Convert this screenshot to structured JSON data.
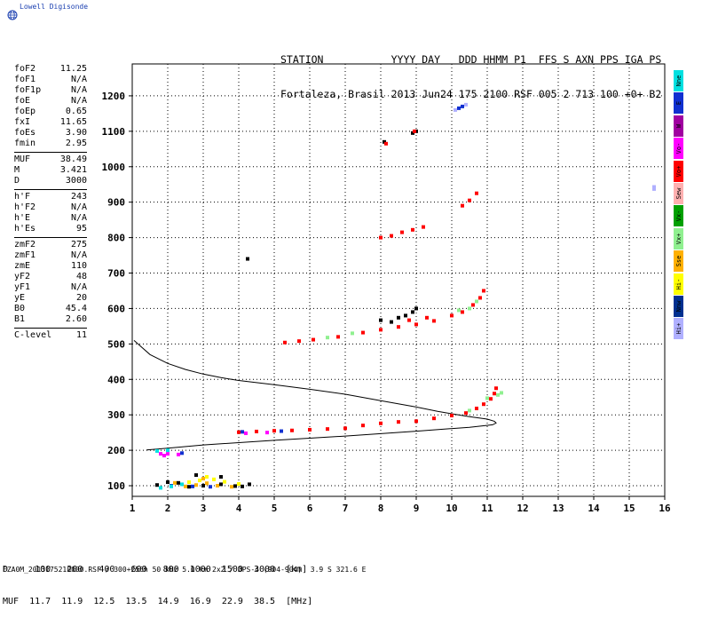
{
  "brand": {
    "name": "Lowell Digisonde"
  },
  "header": {
    "row1": "STATION           YYYY DAY   DDD HHMM P1  FFS S AXN PPS IGA PS",
    "row2": "Fortaleza, Brasil 2013 Jun24 175 2100 RSF 005 2 713 100 +0+ B2"
  },
  "params": [
    [
      {
        "k": "foF2",
        "v": "11.25"
      },
      {
        "k": "foF1",
        "v": "N/A"
      },
      {
        "k": "foF1p",
        "v": "N/A"
      },
      {
        "k": "foE",
        "v": "N/A"
      },
      {
        "k": "foEp",
        "v": "0.65"
      },
      {
        "k": "fxI",
        "v": "11.65"
      },
      {
        "k": "foEs",
        "v": "3.90"
      },
      {
        "k": "fmin",
        "v": "2.95"
      }
    ],
    [
      {
        "k": "MUF",
        "v": "38.49"
      },
      {
        "k": "M",
        "v": "3.421"
      },
      {
        "k": "D",
        "v": "3000"
      }
    ],
    [
      {
        "k": "h'F",
        "v": "243"
      },
      {
        "k": "h'F2",
        "v": "N/A"
      },
      {
        "k": "h'E",
        "v": "N/A"
      },
      {
        "k": "h'Es",
        "v": "95"
      }
    ],
    [
      {
        "k": "zmF2",
        "v": "275"
      },
      {
        "k": "zmF1",
        "v": "N/A"
      },
      {
        "k": "zmE",
        "v": "110"
      },
      {
        "k": "yF2",
        "v": "48"
      },
      {
        "k": "yF1",
        "v": "N/A"
      },
      {
        "k": "yE",
        "v": "20"
      },
      {
        "k": "B0",
        "v": "45.4"
      },
      {
        "k": "B1",
        "v": "2.60"
      }
    ],
    [
      {
        "k": "C-level",
        "v": "11"
      }
    ]
  ],
  "modes": [
    {
      "label": "Nne",
      "color": "#00e0e0"
    },
    {
      "label": "E",
      "color": "#1030d0"
    },
    {
      "label": "W",
      "color": "#a000a0"
    },
    {
      "label": "Vo-",
      "color": "#ff00ff"
    },
    {
      "label": "Vo+",
      "color": "#ff0000"
    },
    {
      "label": "Sew",
      "color": "#ffb0b0"
    },
    {
      "label": "Vx-",
      "color": "#00a000"
    },
    {
      "label": "Vx+",
      "color": "#90f090"
    },
    {
      "label": "Sse",
      "color": "#ffb000"
    },
    {
      "label": "Hi-",
      "color": "#ffff00"
    },
    {
      "label": "Nnw",
      "color": "#003090"
    },
    {
      "label": "Hi+",
      "color": "#b0b0ff"
    }
  ],
  "muf_table": {
    "row1": "D     100   200   400   600   800  1000  1500  3000  [km]",
    "row2": "MUF  11.7  11.9  12.5  13.5  14.9  16.9  22.9  38.5  [MHz]"
  },
  "footer": "FZA0M_2013175210000.RSF / 300+256h 50 kHz 5.0 km 2x2 / DPS-4 (904-904)  3.9 S 321.6 E",
  "chart_data": {
    "type": "scatter",
    "xlim": [
      1,
      16
    ],
    "ylim": [
      70,
      1290
    ],
    "x_ticks": [
      1,
      2,
      3,
      4,
      5,
      6,
      7,
      8,
      9,
      10,
      11,
      12,
      13,
      14,
      15,
      16
    ],
    "y_ticks": [
      100,
      200,
      300,
      400,
      500,
      600,
      700,
      800,
      900,
      1000,
      1100,
      1200
    ],
    "grid": "dotted",
    "series": [
      {
        "color": "#000000",
        "points": [
          [
            1.05,
            510
          ],
          [
            1.5,
            470
          ],
          [
            2,
            445
          ],
          [
            2.5,
            428
          ],
          [
            3,
            415
          ],
          [
            3.5,
            405
          ],
          [
            4,
            397
          ],
          [
            5,
            385
          ],
          [
            6,
            372
          ],
          [
            7,
            358
          ],
          [
            8,
            340
          ],
          [
            9,
            322
          ],
          [
            9.6,
            310
          ],
          [
            10,
            303
          ],
          [
            10.5,
            295
          ],
          [
            11,
            288
          ],
          [
            11.2,
            282
          ],
          [
            11.25,
            277
          ],
          [
            11.15,
            272
          ],
          [
            10.5,
            265
          ],
          [
            9,
            254
          ],
          [
            7,
            240
          ],
          [
            5,
            228
          ],
          [
            3,
            215
          ],
          [
            2,
            206
          ],
          [
            1.4,
            201
          ]
        ]
      },
      {
        "color": "#ff0000",
        "points": [
          [
            4,
            251
          ],
          [
            4.5,
            253
          ],
          [
            5,
            255
          ],
          [
            5.5,
            256
          ],
          [
            6,
            258
          ],
          [
            6.5,
            260
          ],
          [
            7,
            262
          ],
          [
            7.5,
            270
          ],
          [
            8,
            276
          ],
          [
            8.5,
            280
          ],
          [
            9,
            282
          ],
          [
            9.5,
            290
          ],
          [
            10,
            298
          ],
          [
            10.4,
            305
          ],
          [
            10.7,
            318
          ],
          [
            10.9,
            330
          ],
          [
            11.1,
            345
          ],
          [
            11.2,
            360
          ],
          [
            11.25,
            375
          ],
          [
            6.8,
            520
          ],
          [
            7.5,
            532
          ],
          [
            8,
            540
          ],
          [
            8.5,
            548
          ],
          [
            9,
            555
          ],
          [
            9.5,
            565
          ],
          [
            10,
            580
          ],
          [
            10.3,
            590
          ],
          [
            10.6,
            610
          ],
          [
            10.8,
            630
          ],
          [
            10.9,
            650
          ],
          [
            5.3,
            504
          ],
          [
            5.7,
            508
          ],
          [
            6.1,
            512
          ],
          [
            8.8,
            567
          ],
          [
            9.3,
            574
          ]
        ]
      },
      {
        "color": "#90f090",
        "points": [
          [
            11.3,
            356
          ],
          [
            11.4,
            362
          ],
          [
            11.0,
            347
          ],
          [
            10.5,
            312
          ],
          [
            10.2,
            595
          ],
          [
            10.5,
            600
          ],
          [
            10.7,
            620
          ],
          [
            6.5,
            518
          ],
          [
            7.2,
            530
          ]
        ]
      },
      {
        "color": "#ff00ff",
        "points": [
          [
            4.2,
            248
          ],
          [
            4.8,
            250
          ],
          [
            2.0,
            190
          ],
          [
            1.8,
            190
          ],
          [
            1.9,
            185
          ],
          [
            2.3,
            188
          ]
        ]
      },
      {
        "color": "#1030d0",
        "points": [
          [
            4.1,
            252
          ],
          [
            5.2,
            254
          ],
          [
            2.1,
            100
          ],
          [
            2.7,
            98
          ],
          [
            3.2,
            97
          ],
          [
            2.4,
            192
          ],
          [
            10.2,
            1165
          ],
          [
            10.3,
            1170
          ]
        ]
      },
      {
        "color": "#00e0e0",
        "points": [
          [
            1.8,
            94
          ],
          [
            2.1,
            98
          ],
          [
            2.4,
            104
          ],
          [
            1.7,
            198
          ],
          [
            2.0,
            200
          ]
        ]
      },
      {
        "color": "#ffb000",
        "points": [
          [
            2.5,
            98
          ],
          [
            2.8,
            102
          ],
          [
            3.1,
            107
          ],
          [
            3.4,
            100
          ],
          [
            3.8,
            97
          ],
          [
            2.2,
            108
          ],
          [
            3.0,
            120
          ]
        ]
      },
      {
        "color": "#ffff00",
        "points": [
          [
            2.6,
            110
          ],
          [
            2.9,
            115
          ],
          [
            3.3,
            118
          ],
          [
            3.6,
            111
          ],
          [
            4.0,
            105
          ],
          [
            3.1,
            125
          ]
        ]
      },
      {
        "color": "#000000",
        "points": [
          [
            1.7,
            102
          ],
          [
            2.0,
            110
          ],
          [
            2.3,
            108
          ],
          [
            2.6,
            97
          ],
          [
            3.0,
            100
          ],
          [
            3.5,
            104
          ],
          [
            3.9,
            99
          ],
          [
            4.1,
            98
          ],
          [
            2.8,
            130
          ],
          [
            3.5,
            125
          ],
          [
            4.3,
            104
          ],
          [
            8.0,
            567
          ],
          [
            8.3,
            562
          ],
          [
            8.5,
            574
          ],
          [
            8.7,
            580
          ],
          [
            8.9,
            590
          ],
          [
            9.0,
            600
          ],
          [
            4.25,
            740
          ],
          [
            8.1,
            1070
          ],
          [
            8.9,
            1095
          ],
          [
            9.0,
            1100
          ]
        ]
      },
      {
        "color": "#b0b0ff",
        "points": [
          [
            15.7,
            937
          ],
          [
            15.7,
            943
          ],
          [
            10.4,
            1175
          ],
          [
            10.1,
            1160
          ]
        ]
      },
      {
        "color": "#ff0000",
        "points": [
          [
            8.0,
            800
          ],
          [
            8.3,
            805
          ],
          [
            8.6,
            815
          ],
          [
            8.9,
            822
          ],
          [
            9.2,
            830
          ],
          [
            10.3,
            890
          ],
          [
            10.5,
            905
          ],
          [
            10.7,
            925
          ],
          [
            8.15,
            1065
          ],
          [
            8.95,
            1100
          ]
        ]
      }
    ]
  }
}
